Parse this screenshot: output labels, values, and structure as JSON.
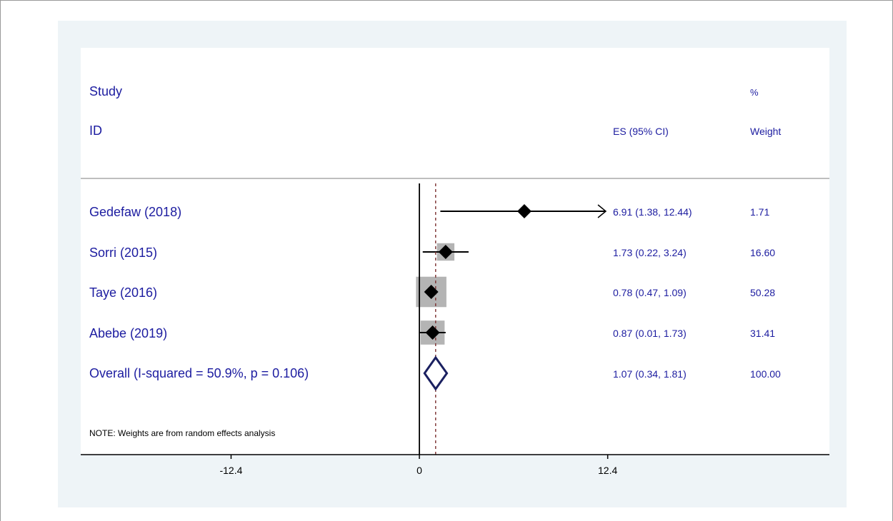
{
  "chart_data": {
    "type": "forest",
    "header": {
      "study_label": "Study",
      "id_label": "ID",
      "es_label": "ES (95% CI)",
      "weight_label_top": "%",
      "weight_label_bottom": "Weight"
    },
    "studies": [
      {
        "name": "Gedefaw (2018)",
        "es": 6.91,
        "lower": 1.38,
        "upper": 12.44,
        "es_text": "6.91 (1.38, 12.44)",
        "weight": 1.71,
        "weight_text": "1.71",
        "truncated_upper": true
      },
      {
        "name": "Sorri (2015)",
        "es": 1.73,
        "lower": 0.22,
        "upper": 3.24,
        "es_text": "1.73 (0.22, 3.24)",
        "weight": 16.6,
        "weight_text": "16.60"
      },
      {
        "name": "Taye (2016)",
        "es": 0.78,
        "lower": 0.47,
        "upper": 1.09,
        "es_text": "0.78 (0.47, 1.09)",
        "weight": 50.28,
        "weight_text": "50.28"
      },
      {
        "name": "Abebe (2019)",
        "es": 0.87,
        "lower": 0.01,
        "upper": 1.73,
        "es_text": "0.87 (0.01, 1.73)",
        "weight": 31.41,
        "weight_text": "31.41"
      }
    ],
    "overall": {
      "label": "Overall  (I-squared = 50.9%, p = 0.106)",
      "es": 1.07,
      "lower": 0.34,
      "upper": 1.81,
      "es_text": "1.07 (0.34, 1.81)",
      "weight_text": "100.00"
    },
    "note": "NOTE: Weights are from random effects analysis",
    "x_ticks": [
      -12.4,
      0,
      12.4
    ],
    "x_tick_labels": [
      "-12.4",
      "0",
      "12.4"
    ],
    "xlim": [
      -22.3,
      27
    ],
    "colors": {
      "text": "#1c1ca0",
      "marker": "#000000",
      "weight_box": "#b4b4b4",
      "overall_diamond": "#1a2060",
      "outer_bg": "#eef4f7"
    }
  }
}
